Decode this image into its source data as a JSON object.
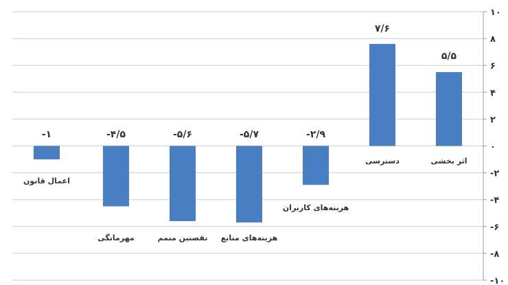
{
  "chart_data": {
    "type": "bar",
    "categories": [
      "اعمال قانون",
      "مهرمانگی",
      "نقصتین متمم",
      "هزینه‌های منابع",
      "هزینه‌های کاربران",
      "دسترسی",
      "اثر بخشی"
    ],
    "values": [
      -1,
      -4.5,
      -5.6,
      -5.7,
      -2.9,
      7.6,
      5.5
    ],
    "value_labels": [
      "-۱",
      "-۴/۵",
      "-۵/۶",
      "-۵/۷",
      "-۲/۹",
      "۷/۶",
      "۵/۵"
    ],
    "ylim": [
      -10,
      10
    ],
    "yticks": [
      10,
      8,
      6,
      4,
      2,
      0,
      -2,
      -4,
      -6,
      -8,
      -10
    ],
    "ytick_labels": [
      "۱۰",
      "۸",
      "۶",
      "۴",
      "۲",
      "۰",
      "-۲",
      "-۴",
      "-۶",
      "-۸",
      "-۱۰"
    ],
    "y_axis_side": "right",
    "grid": true,
    "title": "",
    "xlabel": "",
    "ylabel": "",
    "bar_color": "#4a7ec2"
  }
}
